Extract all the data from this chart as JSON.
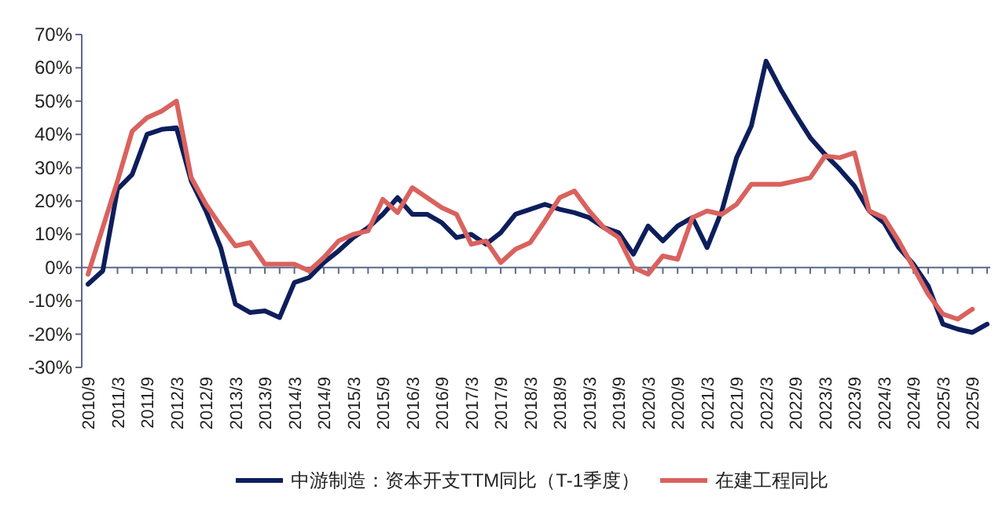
{
  "chart_data": {
    "type": "line",
    "categories": [
      "2010/9",
      null,
      "2011/3",
      null,
      "2011/9",
      null,
      "2012/3",
      null,
      "2012/9",
      null,
      "2013/3",
      null,
      "2013/9",
      null,
      "2014/3",
      null,
      "2014/9",
      null,
      "2015/3",
      null,
      "2015/9",
      null,
      "2016/3",
      null,
      "2016/9",
      null,
      "2017/3",
      null,
      "2017/9",
      null,
      "2018/3",
      null,
      "2018/9",
      null,
      "2019/3",
      null,
      "2019/9",
      null,
      "2020/3",
      null,
      "2020/9",
      null,
      "2021/3",
      null,
      "2021/9",
      null,
      "2022/3",
      null,
      "2022/9",
      null,
      "2023/3",
      null,
      "2023/9",
      null,
      "2024/3",
      null,
      "2024/9",
      null,
      "2025/3",
      null,
      "2025/9",
      null
    ],
    "series": [
      {
        "name": "中游制造：资本开支TTM同比（T-1季度）",
        "color": "#0d1e5c",
        "values": [
          -5,
          -1,
          23.5,
          28,
          40,
          41.5,
          42,
          26,
          17,
          6,
          -11,
          -13.5,
          -13,
          -15,
          -4.5,
          -3,
          1.5,
          5,
          9,
          12,
          16,
          21,
          16,
          16,
          13.5,
          9,
          10,
          7,
          10.5,
          16,
          17.5,
          19,
          17.5,
          16.5,
          15,
          12,
          10.5,
          4,
          12.5,
          8,
          12.5,
          15,
          6,
          17,
          33,
          42.5,
          62,
          53.5,
          46,
          39,
          34,
          29.5,
          24.5,
          17,
          13.5,
          6,
          1,
          -5.5,
          -17,
          -18.5,
          -19.5,
          -17
        ]
      },
      {
        "name": "在建工程同比",
        "color": "#d9625e",
        "values": [
          -2,
          12,
          26,
          41,
          45,
          47,
          50,
          27,
          19,
          12.5,
          6.5,
          7.5,
          1,
          1,
          1,
          -1,
          3,
          8,
          10,
          11,
          20.5,
          16.5,
          24,
          21,
          18,
          16,
          7,
          8,
          1.5,
          5.5,
          7.5,
          14,
          21,
          23,
          17,
          12,
          9,
          0,
          -2,
          3.5,
          2.5,
          15,
          17,
          16,
          19,
          25,
          25,
          25,
          26,
          27,
          33.5,
          33,
          34.5,
          17,
          15,
          8,
          0,
          -8,
          -14,
          -15.5,
          -12.5,
          null
        ]
      }
    ],
    "ylim": [
      -30,
      70
    ],
    "yticks": [
      {
        "value": 70,
        "label": "70%"
      },
      {
        "value": 60,
        "label": "60%"
      },
      {
        "value": 50,
        "label": "50%"
      },
      {
        "value": 40,
        "label": "40%"
      },
      {
        "value": 30,
        "label": "30%"
      },
      {
        "value": 20,
        "label": "20%"
      },
      {
        "value": 10,
        "label": "10%"
      },
      {
        "value": 0,
        "label": "0%"
      },
      {
        "value": -10,
        "label": "-10%"
      },
      {
        "value": -20,
        "label": "-20%"
      },
      {
        "value": -30,
        "label": "-30%"
      }
    ],
    "ref_lines": [
      {
        "axis": "y",
        "value": 0,
        "color": "#5a6a8a"
      }
    ],
    "legend": "bottom",
    "grid": false,
    "marker": "none",
    "line_style": "solid"
  }
}
